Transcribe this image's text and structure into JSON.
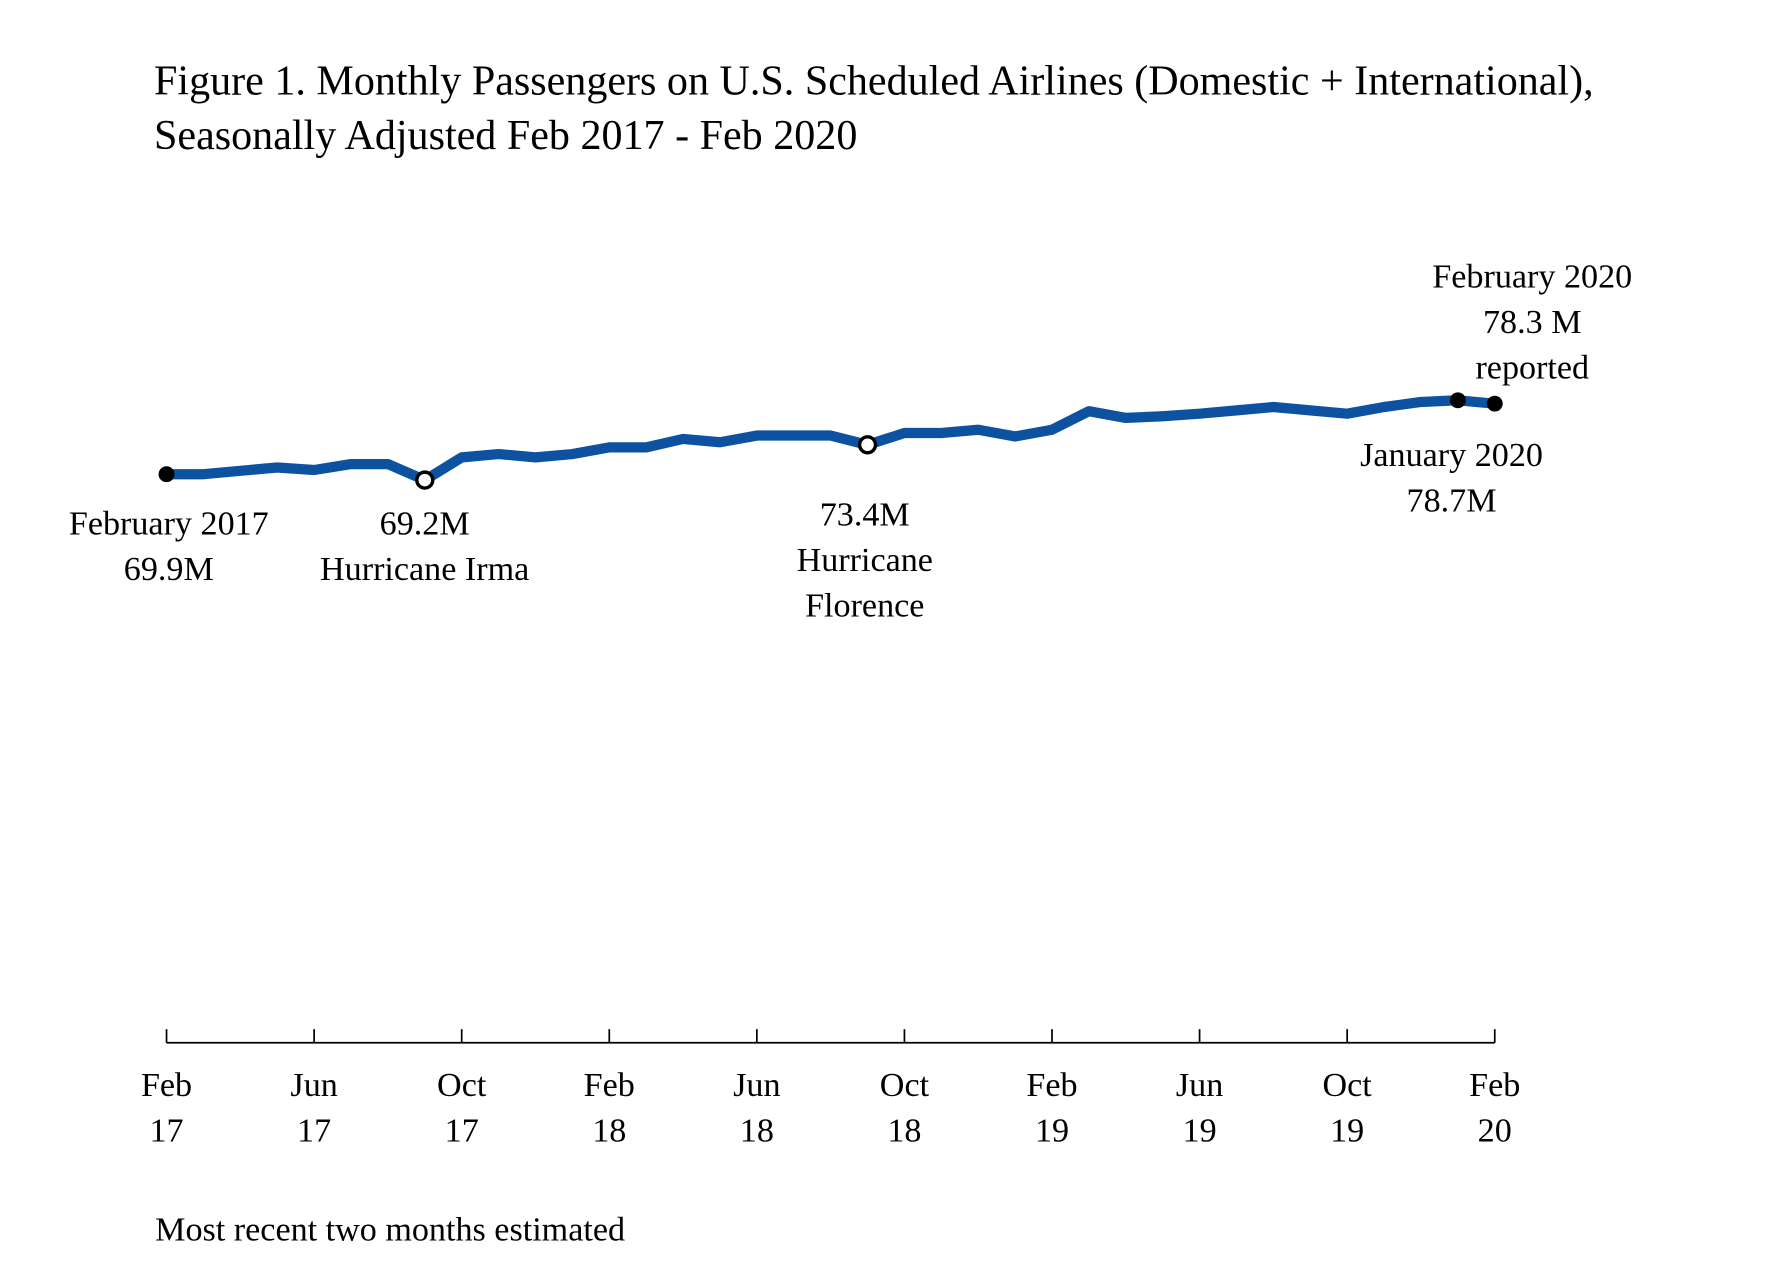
{
  "chart_data": {
    "type": "line",
    "title": [
      "Figure 1. Monthly Passengers on U.S. Scheduled Airlines (Domestic + International),",
      "Seasonally Adjusted Feb 2017 - Feb 2020"
    ],
    "xlabel": "",
    "ylabel": "",
    "ylim": [
      2,
      80
    ],
    "grid": false,
    "line_color": "#0d52a0",
    "x": [
      "2017-02",
      "2017-03",
      "2017-04",
      "2017-05",
      "2017-06",
      "2017-07",
      "2017-08",
      "2017-09",
      "2017-10",
      "2017-11",
      "2017-12",
      "2018-01",
      "2018-02",
      "2018-03",
      "2018-04",
      "2018-05",
      "2018-06",
      "2018-07",
      "2018-08",
      "2018-09",
      "2018-10",
      "2018-11",
      "2018-12",
      "2019-01",
      "2019-02",
      "2019-03",
      "2019-04",
      "2019-05",
      "2019-06",
      "2019-07",
      "2019-08",
      "2019-09",
      "2019-10",
      "2019-11",
      "2019-12",
      "2020-01",
      "2020-02"
    ],
    "series": [
      {
        "unit": "millions of passengers",
        "values": [
          69.9,
          69.9,
          70.3,
          70.7,
          70.4,
          71.1,
          71.1,
          69.2,
          71.9,
          72.3,
          71.9,
          72.3,
          73.1,
          73.1,
          74.1,
          73.7,
          74.5,
          74.5,
          74.5,
          73.4,
          74.8,
          74.8,
          75.2,
          74.4,
          75.2,
          77.4,
          76.6,
          76.8,
          77.1,
          77.5,
          77.9,
          77.5,
          77.1,
          77.9,
          78.5,
          78.7,
          78.3
        ]
      }
    ],
    "x_ticks": [
      {
        "index": 0,
        "line1": "Feb",
        "line2": "17"
      },
      {
        "index": 4,
        "line1": "Jun",
        "line2": "17"
      },
      {
        "index": 8,
        "line1": "Oct",
        "line2": "17"
      },
      {
        "index": 12,
        "line1": "Feb",
        "line2": "18"
      },
      {
        "index": 16,
        "line1": "Jun",
        "line2": "18"
      },
      {
        "index": 20,
        "line1": "Oct",
        "line2": "18"
      },
      {
        "index": 24,
        "line1": "Feb",
        "line2": "19"
      },
      {
        "index": 28,
        "line1": "Jun",
        "line2": "19"
      },
      {
        "index": 32,
        "line1": "Oct",
        "line2": "19"
      },
      {
        "index": 36,
        "line1": "Feb",
        "line2": "20"
      }
    ],
    "annotations": [
      {
        "index": 0,
        "marker": "filled",
        "lines": [
          "February 2017",
          "69.9M"
        ]
      },
      {
        "index": 7,
        "marker": "open",
        "lines": [
          "69.2M",
          "Hurricane Irma"
        ]
      },
      {
        "index": 19,
        "marker": "open",
        "lines": [
          "73.4M",
          "Hurricane",
          "Florence"
        ]
      },
      {
        "index": 35,
        "marker": "filled",
        "lines": [
          "January 2020",
          "78.7M"
        ]
      },
      {
        "index": 36,
        "marker": "filled",
        "lines": [
          "February 2020",
          "78.3 M",
          "reported"
        ]
      }
    ],
    "footnote": "Most recent two months estimated"
  }
}
